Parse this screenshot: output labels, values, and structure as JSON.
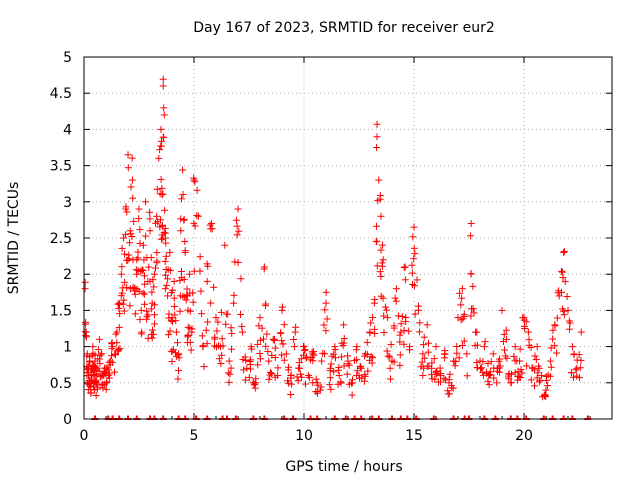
{
  "chart_data": {
    "type": "scatter",
    "title": "Day 167 of 2023, SRMTID for receiver eur2",
    "xlabel": "GPS time / hours",
    "ylabel": "SRMTID / TECUs",
    "xlim": [
      0,
      24
    ],
    "ylim": [
      0,
      5
    ],
    "x_ticks": [
      "0",
      "5",
      "10",
      "15",
      "20"
    ],
    "x_tick_values": [
      0,
      5,
      10,
      15,
      20
    ],
    "y_ticks": [
      "0",
      "0.5",
      "1",
      "1.5",
      "2",
      "2.5",
      "3",
      "3.5",
      "4",
      "4.5",
      "5"
    ],
    "y_tick_values": [
      0,
      0.5,
      1,
      1.5,
      2,
      2.5,
      3,
      3.5,
      4,
      4.5,
      5
    ],
    "grid": true,
    "marker": "+",
    "marker_color": "#ff0000",
    "series": [
      {
        "name": "SRMTID",
        "x": [
          0.05,
          0.1,
          0.15,
          0.2,
          0.25,
          0.3,
          0.35,
          0.4,
          0.45,
          0.5,
          0.55,
          0.6,
          0.7,
          0.8,
          0.9,
          1.0,
          1.1,
          1.2,
          1.3,
          1.5,
          1.6,
          1.7,
          1.8,
          1.9,
          2.0,
          2.1,
          2.2,
          2.3,
          2.4,
          2.5,
          2.6,
          2.7,
          2.8,
          2.9,
          3.0,
          3.1,
          3.2,
          3.3,
          3.4,
          3.5,
          3.55,
          3.6,
          3.65,
          3.7,
          3.8,
          3.9,
          4.0,
          4.1,
          4.2,
          4.3,
          4.4,
          4.5,
          4.6,
          4.7,
          4.8,
          4.9,
          5.0,
          5.2,
          5.4,
          5.6,
          5.8,
          6.0,
          6.2,
          6.4,
          6.6,
          6.8,
          7.0,
          7.2,
          7.4,
          7.6,
          7.8,
          8.0,
          8.2,
          8.4,
          8.6,
          8.8,
          9.0,
          9.2,
          9.4,
          9.6,
          9.8,
          10.0,
          10.2,
          10.4,
          10.6,
          10.8,
          11.0,
          11.2,
          11.4,
          11.6,
          11.8,
          12.0,
          12.2,
          12.4,
          12.6,
          12.8,
          13.0,
          13.2,
          13.3,
          13.4,
          13.5,
          13.6,
          13.8,
          14.0,
          14.2,
          14.4,
          14.6,
          14.8,
          15.0,
          15.2,
          15.4,
          15.6,
          15.8,
          16.0,
          16.2,
          16.4,
          16.6,
          16.8,
          17.0,
          17.2,
          17.4,
          17.6,
          17.8,
          18.0,
          18.2,
          18.4,
          18.6,
          18.8,
          19.0,
          19.2,
          19.4,
          19.6,
          19.8,
          20.0,
          20.2,
          20.4,
          20.6,
          20.8,
          21.0,
          21.2,
          21.4,
          21.6,
          21.8,
          22.0,
          22.2,
          22.4,
          22.6
        ],
        "y": [
          1.8,
          1.2,
          0.9,
          0.6,
          0.8,
          0.5,
          0.7,
          1.0,
          0.6,
          0.8,
          0.5,
          0.7,
          1.1,
          0.9,
          0.6,
          0.7,
          0.6,
          0.8,
          1.0,
          1.2,
          1.6,
          2.0,
          2.5,
          2.9,
          3.65,
          2.6,
          3.3,
          1.8,
          2.2,
          2.9,
          1.5,
          2.4,
          3.0,
          1.9,
          2.6,
          1.6,
          2.0,
          2.8,
          3.6,
          4.0,
          3.1,
          4.6,
          4.2,
          2.5,
          1.7,
          2.3,
          1.4,
          1.9,
          1.2,
          0.9,
          2.6,
          3.1,
          2.3,
          1.7,
          2.0,
          1.2,
          3.3,
          2.8,
          1.0,
          1.9,
          2.7,
          1.4,
          1.0,
          2.4,
          0.8,
          1.6,
          2.9,
          1.2,
          0.7,
          1.0,
          0.5,
          1.4,
          2.1,
          0.8,
          1.1,
          0.6,
          1.5,
          0.9,
          0.6,
          1.2,
          0.7,
          1.0,
          0.6,
          0.9,
          0.5,
          0.8,
          1.6,
          0.7,
          1.0,
          0.6,
          1.3,
          0.8,
          0.5,
          1.0,
          0.7,
          0.9,
          1.2,
          1.6,
          3.75,
          3.3,
          2.8,
          2.2,
          1.4,
          0.8,
          1.8,
          1.2,
          2.1,
          1.0,
          2.65,
          1.5,
          0.9,
          1.3,
          0.7,
          1.0,
          0.6,
          0.9,
          0.5,
          0.8,
          1.4,
          1.8,
          0.9,
          2.7,
          1.2,
          0.8,
          1.0,
          0.6,
          0.9,
          0.7,
          1.5,
          1.1,
          0.5,
          1.0,
          0.8,
          1.4,
          1.2,
          0.7,
          1.0,
          0.6,
          0.4,
          0.8,
          1.3,
          1.7,
          2.3,
          1.5,
          1.0,
          0.7,
          1.2
        ],
        "zero_x": [
          0.5,
          1.1,
          1.3,
          1.6,
          2.0,
          2.4,
          3.0,
          3.2,
          3.6,
          4.3,
          4.6,
          5.1,
          5.6,
          6.3,
          6.5,
          6.9,
          7.7,
          8.2,
          9.1,
          9.5,
          10.3,
          10.6,
          11.4,
          11.9,
          12.3,
          12.6,
          13.1,
          13.4,
          14.0,
          14.4,
          14.7,
          15.1,
          15.9,
          16.8,
          17.3,
          17.5,
          18.2,
          18.7,
          19.4,
          19.7,
          20.1,
          20.9,
          21.3,
          21.8,
          22.2,
          22.9
        ]
      }
    ]
  }
}
